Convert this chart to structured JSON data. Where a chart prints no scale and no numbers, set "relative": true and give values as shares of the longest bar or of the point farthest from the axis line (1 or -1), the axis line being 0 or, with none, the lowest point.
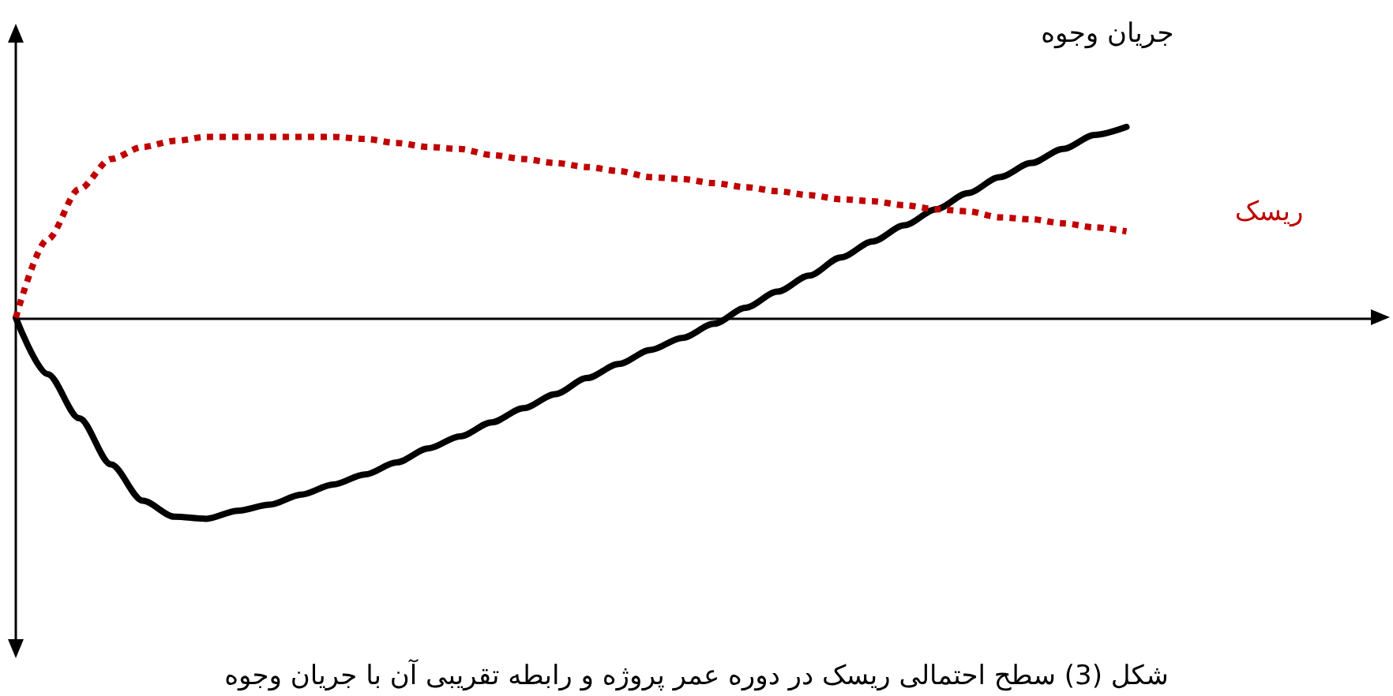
{
  "chart_data": {
    "type": "line",
    "relative": true,
    "legend": false,
    "marker": "none",
    "categories": [
      null,
      null,
      null,
      null,
      null,
      null,
      null,
      null,
      null,
      null,
      null,
      null,
      null,
      null,
      null,
      null,
      null,
      null,
      null,
      null,
      null,
      null,
      null,
      null,
      null,
      null,
      null,
      null,
      null,
      null,
      null,
      null,
      null,
      null,
      null,
      null,
      null,
      null,
      null,
      null,
      null,
      null,
      null,
      null
    ],
    "annotations": [
      "شکل (3) سطح احتمالی ریسک در دوره عمر پروژه و رابطه تقریبی آن با جریان وجوه"
    ],
    "series": [
      {
        "name": "جریان وجوه",
        "color": "#000000",
        "line_style": "solid",
        "values": [
          0,
          -0.28,
          -0.5,
          -0.73,
          -0.91,
          -0.99,
          -1,
          -0.96,
          -0.93,
          -0.88,
          -0.83,
          -0.78,
          -0.72,
          -0.65,
          -0.59,
          -0.52,
          -0.45,
          -0.38,
          -0.3,
          -0.23,
          -0.16,
          -0.1,
          -0.03,
          0.05,
          0.13,
          0.21,
          0.3,
          0.38,
          0.46,
          0.54,
          0.62,
          0.7,
          0.77,
          0.84,
          0.91,
          0.95,
          null,
          null,
          null,
          null,
          null,
          null,
          null,
          null
        ]
      },
      {
        "name": "ریسک",
        "color": "#c00000",
        "line_style": "dotted",
        "values": [
          0,
          0.39,
          0.64,
          0.79,
          0.85,
          0.88,
          0.9,
          0.9,
          0.9,
          0.9,
          0.9,
          0.89,
          0.87,
          0.85,
          0.84,
          0.81,
          0.79,
          0.77,
          0.75,
          0.73,
          0.7,
          0.69,
          0.67,
          0.65,
          0.63,
          0.61,
          0.59,
          0.58,
          0.56,
          0.54,
          0.53,
          0.5,
          0.49,
          0.47,
          0.45,
          0.43,
          null,
          null,
          null,
          null,
          null,
          null,
          null,
          null
        ]
      }
    ]
  }
}
